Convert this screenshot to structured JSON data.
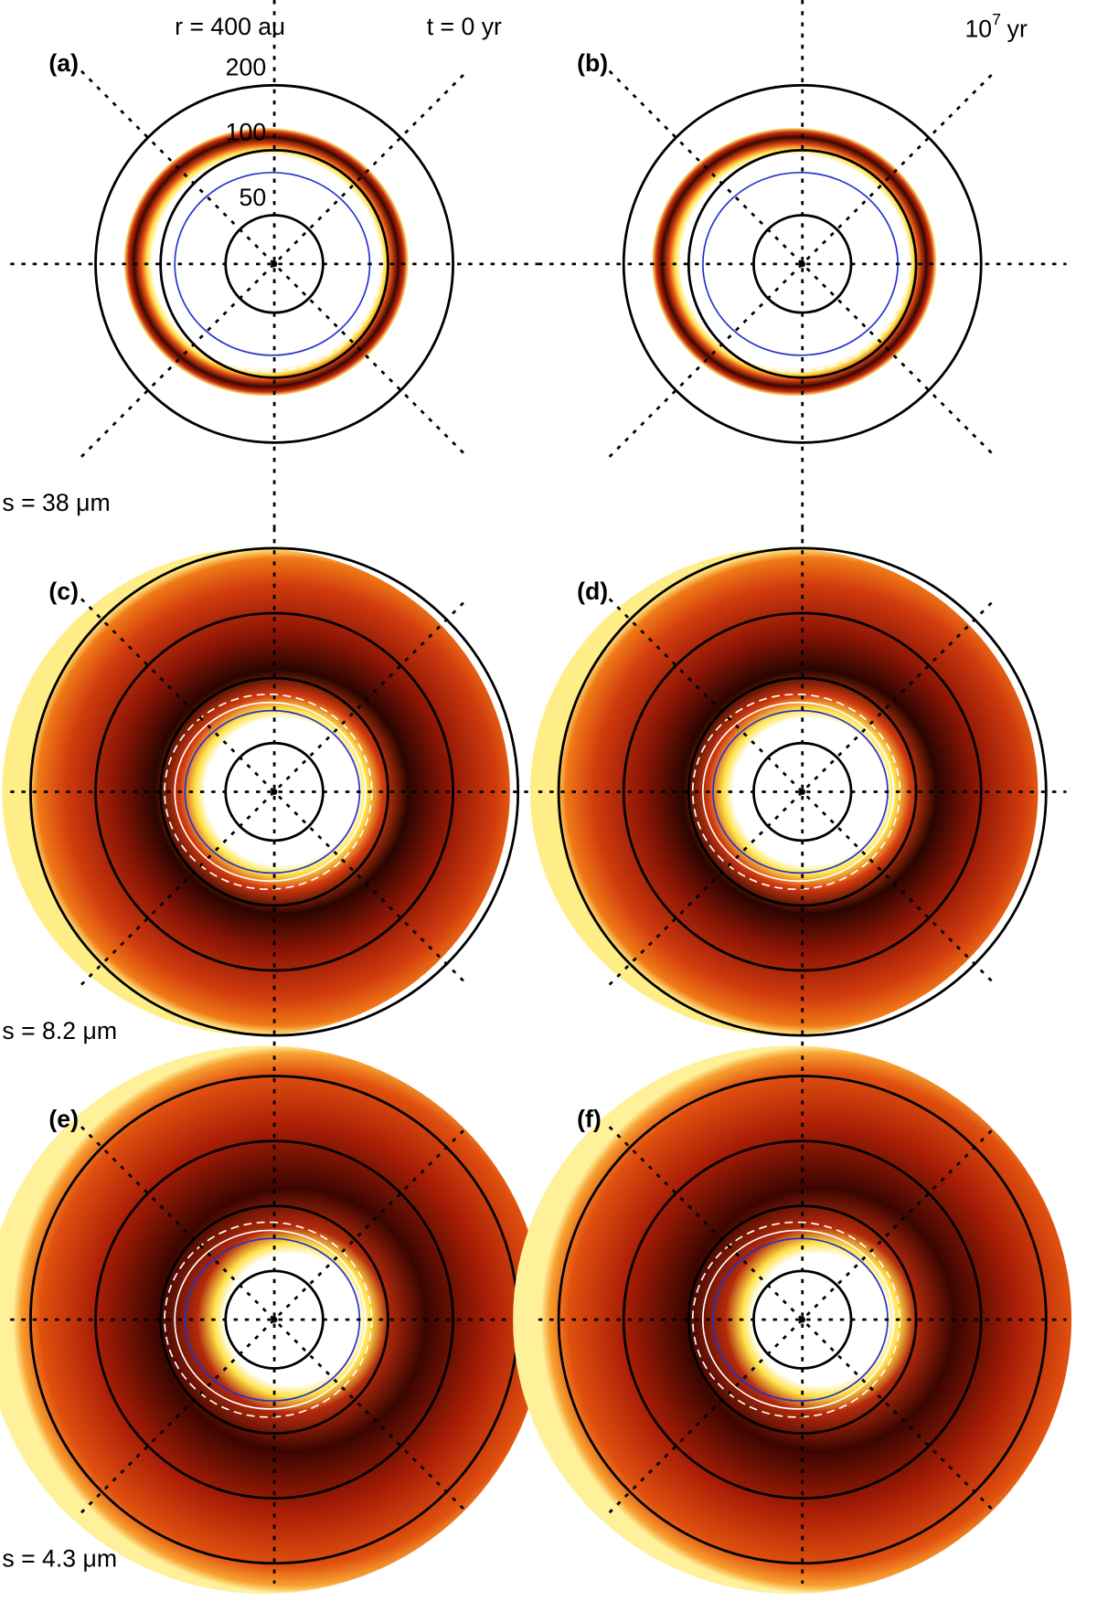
{
  "header": {
    "radius_label": "r = 400 au",
    "time_start": "t = 0 yr",
    "time_end_base": "10",
    "time_end_exp": "7",
    "time_end_unit": "yr"
  },
  "rings": [
    {
      "value": 50,
      "label": "50"
    },
    {
      "value": 100,
      "label": "100"
    },
    {
      "value": 200,
      "label": "200"
    }
  ],
  "outer_ring": 400,
  "panels": [
    "(a)",
    "(b)",
    "(c)",
    "(d)",
    "(e)",
    "(f)"
  ],
  "sizes": [
    "s = 38 μm",
    "s = 8.2 μm",
    "s = 4.3 μm"
  ]
}
